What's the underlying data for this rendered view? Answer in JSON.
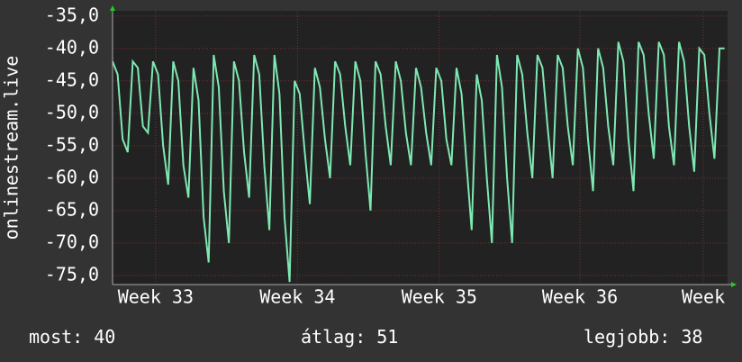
{
  "chart_data": {
    "type": "line",
    "y_label": "onlinestream.live",
    "color": "#7ee8b2",
    "grid": true,
    "ylim": [
      -76.4,
      -34.2
    ],
    "yticks": [
      {
        "value": -35,
        "label": "-35,0"
      },
      {
        "value": -40,
        "label": "-40,0"
      },
      {
        "value": -45,
        "label": "-45,0"
      },
      {
        "value": -50,
        "label": "-50,0"
      },
      {
        "value": -55,
        "label": "-55,0"
      },
      {
        "value": -60,
        "label": "-60,0"
      },
      {
        "value": -65,
        "label": "-65,0"
      },
      {
        "value": -70,
        "label": "-70,0"
      },
      {
        "value": -75,
        "label": "-75,0"
      }
    ],
    "xlim": [
      0,
      30.4
    ],
    "xticks": [
      {
        "value": 2.13,
        "label": "Week 33"
      },
      {
        "value": 9.14,
        "label": "Week 34"
      },
      {
        "value": 16.15,
        "label": "Week 35"
      },
      {
        "value": 23.1,
        "label": "Week 36"
      },
      {
        "value": 29.2,
        "label": "Week"
      }
    ],
    "x": [
      0,
      0.25,
      0.5,
      0.75,
      1,
      1.25,
      1.5,
      1.75,
      2,
      2.25,
      2.5,
      2.75,
      3,
      3.25,
      3.5,
      3.75,
      4,
      4.25,
      4.5,
      4.75,
      5,
      5.25,
      5.5,
      5.75,
      6,
      6.25,
      6.5,
      6.75,
      7,
      7.25,
      7.5,
      7.75,
      8,
      8.25,
      8.5,
      8.75,
      9,
      9.25,
      9.5,
      9.75,
      10,
      10.25,
      10.5,
      10.75,
      11,
      11.25,
      11.5,
      11.75,
      12,
      12.25,
      12.5,
      12.75,
      13,
      13.25,
      13.5,
      13.75,
      14,
      14.25,
      14.5,
      14.75,
      15,
      15.25,
      15.5,
      15.75,
      16,
      16.25,
      16.5,
      16.75,
      17,
      17.25,
      17.5,
      17.75,
      18,
      18.25,
      18.5,
      18.75,
      19,
      19.25,
      19.5,
      19.75,
      20,
      20.25,
      20.5,
      20.75,
      21,
      21.25,
      21.5,
      21.75,
      22,
      22.25,
      22.5,
      22.75,
      23,
      23.25,
      23.5,
      23.75,
      24,
      24.25,
      24.5,
      24.75,
      25,
      25.25,
      25.5,
      25.75,
      26,
      26.25,
      26.5,
      26.75,
      27,
      27.25,
      27.5,
      27.75,
      28,
      28.25,
      28.5,
      28.75,
      29,
      29.25,
      29.5,
      29.75,
      30,
      30.25
    ],
    "values": [
      -42,
      -44,
      -54,
      -56,
      -42,
      -43,
      -52,
      -53,
      -42,
      -44,
      -55,
      -61,
      -42,
      -45,
      -58,
      -63,
      -43,
      -48,
      -66,
      -73,
      -41,
      -46,
      -62,
      -70,
      -42,
      -45,
      -56,
      -63,
      -41,
      -44,
      -58,
      -68,
      -41,
      -47,
      -66,
      -76,
      -45,
      -47,
      -56,
      -64,
      -43,
      -46,
      -54,
      -60,
      -42,
      -44,
      -52,
      -58,
      -42,
      -45,
      -56,
      -65,
      -42,
      -44,
      -52,
      -58,
      -42,
      -45,
      -53,
      -58,
      -43,
      -46,
      -53,
      -58,
      -43,
      -45,
      -54,
      -58,
      -43,
      -47,
      -58,
      -68,
      -44,
      -48,
      -60,
      -70,
      -41,
      -46,
      -60,
      -70,
      -41,
      -44,
      -53,
      -60,
      -41,
      -43,
      -52,
      -60,
      -41,
      -43,
      -52,
      -58,
      -40,
      -43,
      -54,
      -62,
      -40,
      -43,
      -52,
      -58,
      -39,
      -42,
      -54,
      -62,
      -39,
      -41,
      -50,
      -57,
      -39,
      -41,
      -52,
      -58,
      -39,
      -42,
      -52,
      -59,
      -40,
      -41,
      -50,
      -57,
      -40,
      -40
    ],
    "footer": [
      {
        "label": "most:",
        "value": 40
      },
      {
        "label": "átlag:",
        "value": 51
      },
      {
        "label": "legjobb:",
        "value": 38
      }
    ]
  }
}
